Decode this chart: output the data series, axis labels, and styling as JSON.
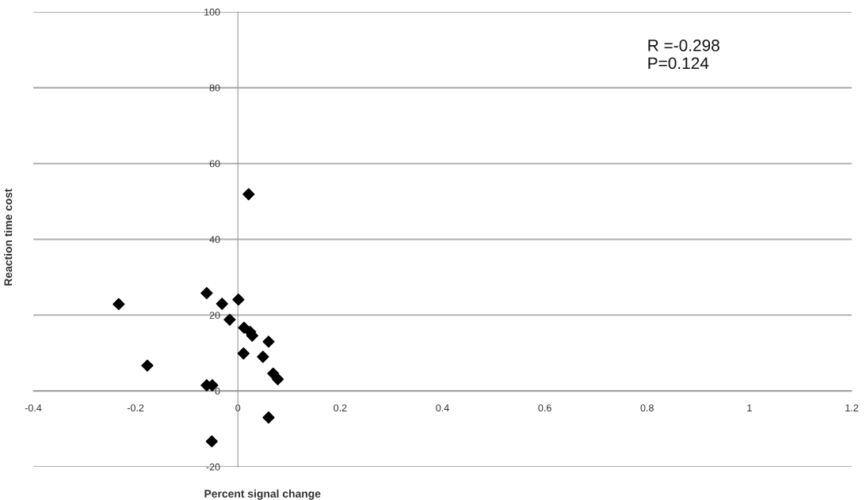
{
  "chart_data": {
    "type": "scatter",
    "xlabel": "Percent signal change",
    "ylabel": "Reaction time cost",
    "annotations": [
      "R =-0.298\nP=0.124"
    ],
    "x": [
      -0.233,
      -0.177,
      -0.061,
      -0.031,
      -0.016,
      0.001,
      0.012,
      0.024,
      0.028,
      0.021,
      0.011,
      0.06,
      0.049,
      0.069,
      0.078,
      -0.061,
      -0.05,
      -0.051,
      0.06
    ],
    "series": [
      {
        "color": "#000000",
        "values": [
          22.9,
          6.7,
          25.8,
          23,
          18.8,
          24.1,
          16.7,
          15.6,
          14.6,
          51.9,
          9.9,
          13,
          9,
          4.6,
          3.1,
          1.5,
          1.5,
          -13.3,
          -7
        ]
      }
    ],
    "xlim": [
      -0.4,
      1.2
    ],
    "xticks": [
      -0.4,
      -0.2,
      0,
      0.2,
      0.4,
      0.6,
      0.8,
      1,
      1.2
    ],
    "ylim": [
      -20,
      100
    ],
    "yticks": [
      -20,
      0,
      20,
      40,
      60,
      80,
      100
    ],
    "grid": "y",
    "marker": "diamond",
    "legend": false
  }
}
